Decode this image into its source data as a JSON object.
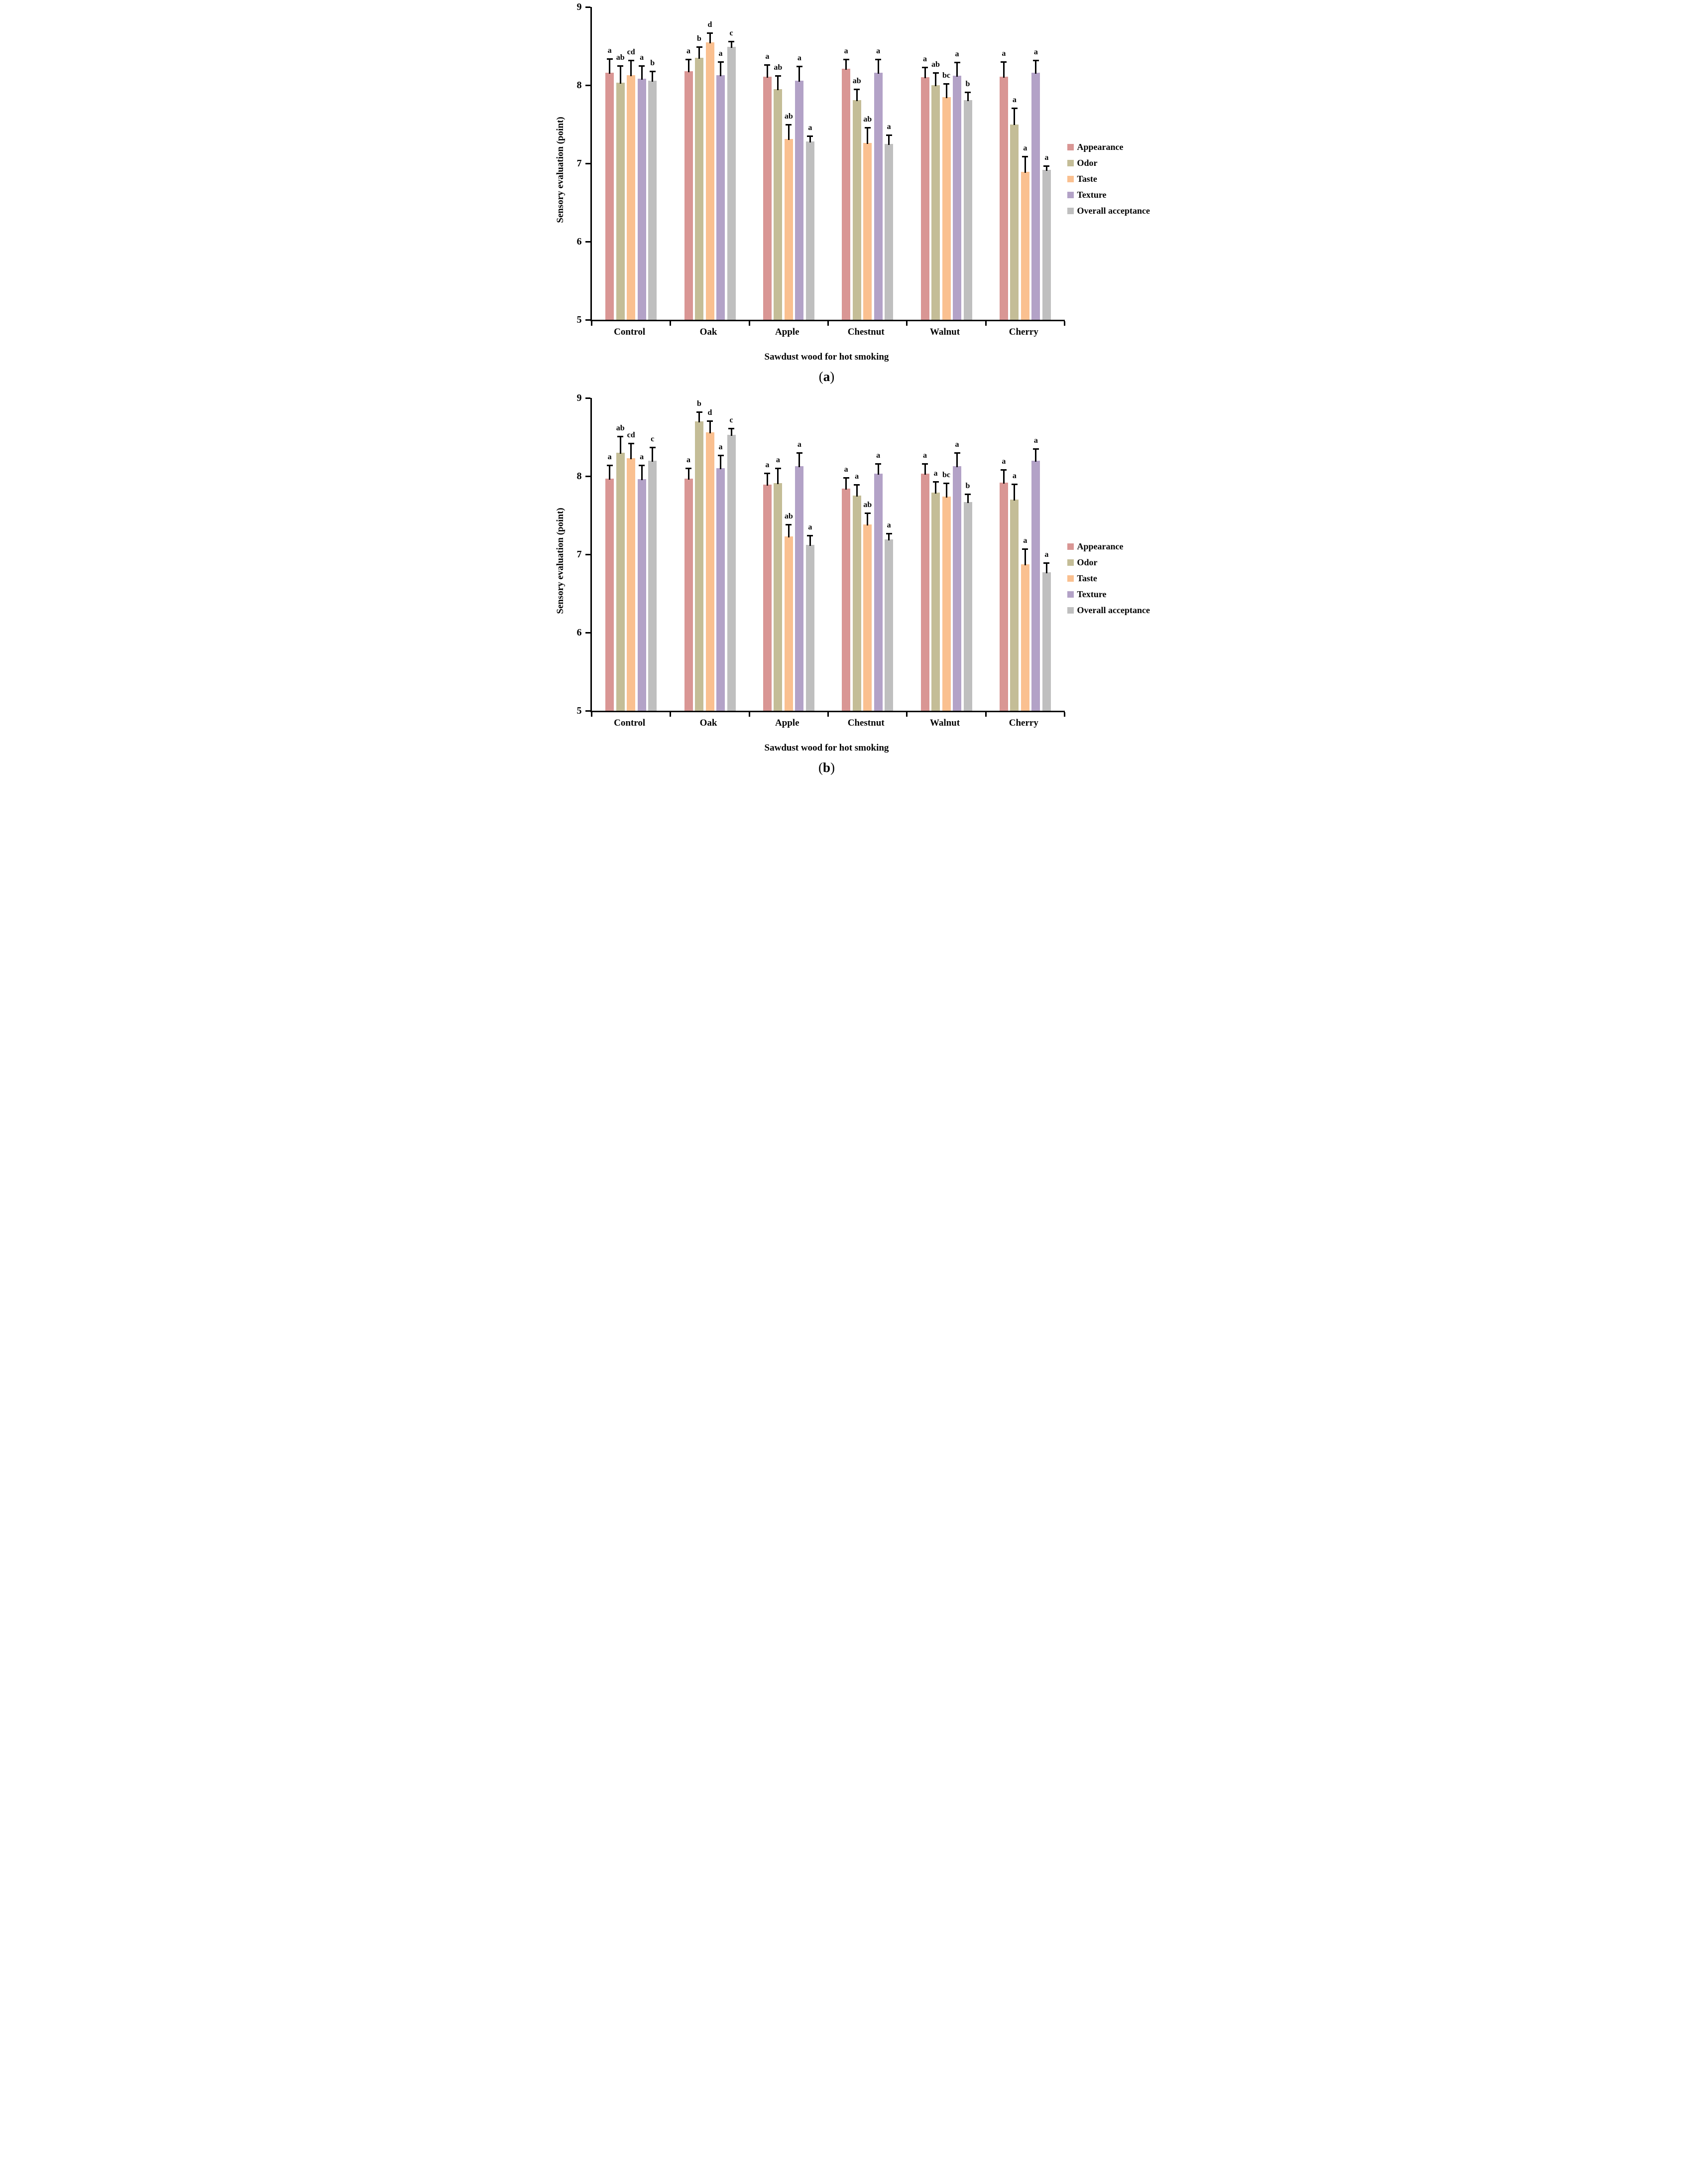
{
  "chart_data": [
    {
      "id": "a",
      "type": "bar",
      "caption_open": "(",
      "caption_letter": "a",
      "caption_close": ")",
      "ylabel": "Sensory evaluation (point)",
      "xlabel": "Sawdust wood for hot smoking",
      "ylim": [
        5,
        9
      ],
      "y_ticks": [
        "9",
        "8",
        "7",
        "6",
        "5"
      ],
      "grid": "off",
      "legend_position": "right",
      "error_bars": "upper",
      "categories": [
        "Control",
        "Oak",
        "Apple",
        "Chestnut",
        "Walnut",
        "Cherry"
      ],
      "series": [
        {
          "name": "Appearance",
          "color": "#D99694",
          "values": [
            8.16,
            8.18,
            8.11,
            8.21,
            8.1,
            8.11
          ],
          "errors": [
            0.18,
            0.15,
            0.15,
            0.12,
            0.13,
            0.19
          ],
          "letters": [
            "a",
            "a",
            "a",
            "a",
            "a",
            "a"
          ]
        },
        {
          "name": "Odor",
          "color": "#C4BD97",
          "values": [
            8.03,
            8.35,
            7.95,
            7.81,
            8.0,
            7.5
          ],
          "errors": [
            0.22,
            0.14,
            0.17,
            0.14,
            0.16,
            0.21
          ],
          "letters": [
            "ab",
            "b",
            "ab",
            "ab",
            "ab",
            "a"
          ]
        },
        {
          "name": "Taste",
          "color": "#FAC090",
          "values": [
            8.13,
            8.55,
            7.31,
            7.26,
            7.85,
            6.89
          ],
          "errors": [
            0.19,
            0.12,
            0.19,
            0.2,
            0.17,
            0.2
          ],
          "letters": [
            "cd",
            "d",
            "ab",
            "ab",
            "bc",
            "a"
          ]
        },
        {
          "name": "Texture",
          "color": "#B3A2C7",
          "values": [
            8.08,
            8.13,
            8.06,
            8.16,
            8.12,
            8.16
          ],
          "errors": [
            0.17,
            0.17,
            0.18,
            0.17,
            0.17,
            0.16
          ],
          "letters": [
            "a",
            "a",
            "a",
            "a",
            "a",
            "a"
          ]
        },
        {
          "name": "Overall acceptance",
          "color": "#BFBFBF",
          "values": [
            8.06,
            8.49,
            7.28,
            7.25,
            7.81,
            6.92
          ],
          "errors": [
            0.12,
            0.07,
            0.07,
            0.11,
            0.1,
            0.05
          ],
          "letters": [
            "b",
            "c",
            "a",
            "a",
            "b",
            "a"
          ]
        }
      ]
    },
    {
      "id": "b",
      "type": "bar",
      "caption_open": "(",
      "caption_letter": "b",
      "caption_close": ")",
      "ylabel": "Sensory evaluation (point)",
      "xlabel": "Sawdust wood for hot smoking",
      "ylim": [
        5,
        9
      ],
      "y_ticks": [
        "9",
        "8",
        "7",
        "6",
        "5"
      ],
      "grid": "off",
      "legend_position": "right",
      "error_bars": "upper",
      "categories": [
        "Control",
        "Oak",
        "Apple",
        "Chestnut",
        "Walnut",
        "Cherry"
      ],
      "series": [
        {
          "name": "Appearance",
          "color": "#D99694",
          "values": [
            7.97,
            7.97,
            7.89,
            7.84,
            8.03,
            7.92
          ],
          "errors": [
            0.17,
            0.13,
            0.15,
            0.14,
            0.13,
            0.16
          ],
          "letters": [
            "a",
            "a",
            "a",
            "a",
            "a",
            "a"
          ]
        },
        {
          "name": "Odor",
          "color": "#C4BD97",
          "values": [
            8.3,
            8.7,
            7.91,
            7.75,
            7.79,
            7.7
          ],
          "errors": [
            0.21,
            0.12,
            0.19,
            0.14,
            0.14,
            0.2
          ],
          "letters": [
            "ab",
            "b",
            "a",
            "a",
            "a",
            "a"
          ]
        },
        {
          "name": "Taste",
          "color": "#FAC090",
          "values": [
            8.23,
            8.56,
            7.23,
            7.38,
            7.74,
            6.87
          ],
          "errors": [
            0.19,
            0.15,
            0.15,
            0.15,
            0.17,
            0.2
          ],
          "letters": [
            "cd",
            "d",
            "ab",
            "ab",
            "bc",
            "a"
          ]
        },
        {
          "name": "Texture",
          "color": "#B3A2C7",
          "values": [
            7.96,
            8.1,
            8.13,
            8.03,
            8.13,
            8.2
          ],
          "errors": [
            0.18,
            0.17,
            0.17,
            0.13,
            0.17,
            0.15
          ],
          "letters": [
            "a",
            "a",
            "a",
            "a",
            "a",
            "a"
          ]
        },
        {
          "name": "Overall acceptance",
          "color": "#BFBFBF",
          "values": [
            8.2,
            8.53,
            7.12,
            7.19,
            7.67,
            6.77
          ],
          "errors": [
            0.17,
            0.08,
            0.12,
            0.08,
            0.1,
            0.12
          ],
          "letters": [
            "c",
            "c",
            "a",
            "a",
            "b",
            "a"
          ]
        }
      ]
    }
  ]
}
